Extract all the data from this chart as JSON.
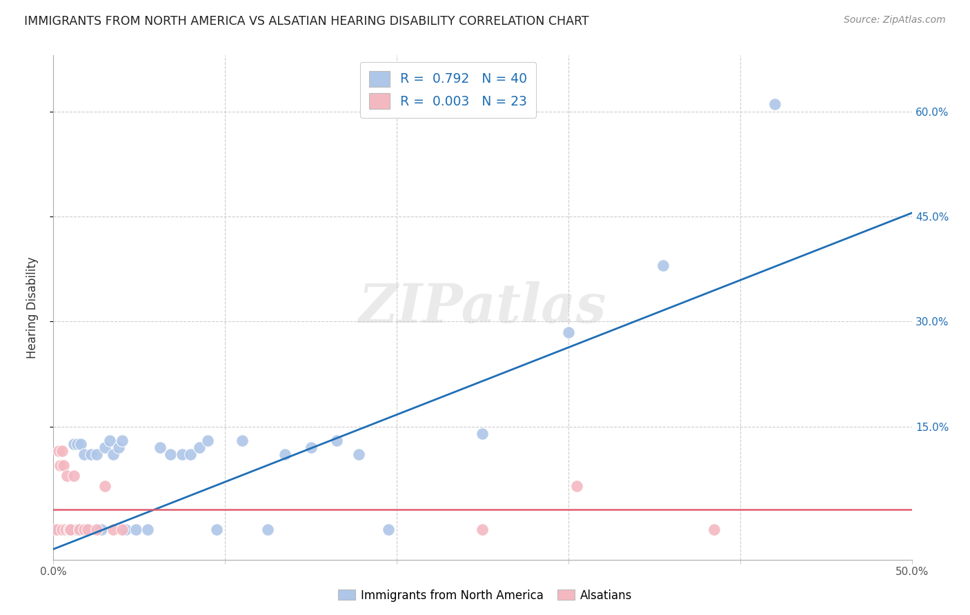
{
  "title": "IMMIGRANTS FROM NORTH AMERICA VS ALSATIAN HEARING DISABILITY CORRELATION CHART",
  "source": "Source: ZipAtlas.com",
  "ylabel": "Hearing Disability",
  "xlim": [
    0.0,
    0.5
  ],
  "ylim": [
    -0.04,
    0.68
  ],
  "xticks": [
    0.0,
    0.1,
    0.2,
    0.3,
    0.4,
    0.5
  ],
  "xticklabels": [
    "0.0%",
    "",
    "",
    "",
    "",
    "50.0%"
  ],
  "yticks": [
    0.15,
    0.3,
    0.45,
    0.6
  ],
  "yticklabels_right": [
    "15.0%",
    "30.0%",
    "45.0%",
    "60.0%"
  ],
  "legend_r1": "R =  0.792   N = 40",
  "legend_r2": "R =  0.003   N = 23",
  "blue_color": "#aec6e8",
  "blue_line_color": "#1f6eb5",
  "pink_color": "#f4b8c1",
  "pink_line_color": "#e05c6e",
  "watermark": "ZIPatlas",
  "blue_scatter_x": [
    0.003,
    0.005,
    0.007,
    0.009,
    0.01,
    0.012,
    0.013,
    0.014,
    0.016,
    0.018,
    0.02,
    0.022,
    0.025,
    0.028,
    0.03,
    0.033,
    0.035,
    0.038,
    0.04,
    0.042,
    0.048,
    0.055,
    0.062,
    0.068,
    0.075,
    0.08,
    0.085,
    0.09,
    0.095,
    0.11,
    0.125,
    0.135,
    0.15,
    0.165,
    0.178,
    0.195,
    0.25,
    0.3,
    0.355,
    0.42
  ],
  "blue_scatter_y": [
    0.003,
    0.003,
    0.003,
    0.003,
    0.003,
    0.125,
    0.003,
    0.125,
    0.125,
    0.11,
    0.003,
    0.11,
    0.11,
    0.003,
    0.12,
    0.13,
    0.11,
    0.12,
    0.13,
    0.003,
    0.003,
    0.003,
    0.12,
    0.11,
    0.11,
    0.11,
    0.12,
    0.13,
    0.003,
    0.13,
    0.003,
    0.11,
    0.12,
    0.13,
    0.11,
    0.003,
    0.14,
    0.285,
    0.38,
    0.61
  ],
  "pink_scatter_x": [
    0.002,
    0.003,
    0.004,
    0.005,
    0.005,
    0.006,
    0.007,
    0.008,
    0.009,
    0.01,
    0.01,
    0.012,
    0.015,
    0.015,
    0.018,
    0.02,
    0.025,
    0.03,
    0.035,
    0.04,
    0.25,
    0.305,
    0.385
  ],
  "pink_scatter_y": [
    0.003,
    0.115,
    0.095,
    0.003,
    0.115,
    0.095,
    0.003,
    0.08,
    0.003,
    0.003,
    0.003,
    0.08,
    0.003,
    0.003,
    0.003,
    0.003,
    0.003,
    0.065,
    0.003,
    0.003,
    0.003,
    0.065,
    0.003
  ],
  "blue_line_x1": 0.0,
  "blue_line_y1": -0.025,
  "blue_line_x2": 0.5,
  "blue_line_y2": 0.455,
  "pink_line_y": 0.032,
  "pink_line_x1": 0.0,
  "pink_line_x2": 0.5
}
